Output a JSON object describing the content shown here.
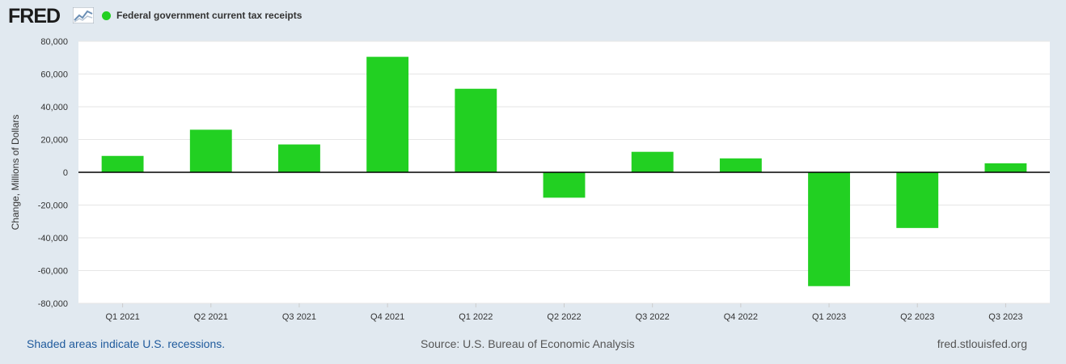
{
  "header": {
    "logo": "FRED",
    "legend_label": "Federal government current tax receipts",
    "legend_color": "#22d022"
  },
  "footer": {
    "recessions_note": "Shaded areas indicate U.S. recessions.",
    "source": "Source: U.S. Bureau of Economic Analysis",
    "site": "fred.stlouisfed.org"
  },
  "chart_data": {
    "type": "bar",
    "categories": [
      "Q1 2021",
      "Q2 2021",
      "Q3 2021",
      "Q4 2021",
      "Q1 2022",
      "Q2 2022",
      "Q3 2022",
      "Q4 2022",
      "Q1 2023",
      "Q2 2023",
      "Q3 2023"
    ],
    "series": [
      {
        "name": "Federal government current tax receipts",
        "color": "#22d022",
        "values": [
          10000,
          26000,
          17000,
          70500,
          51000,
          -15500,
          12500,
          8500,
          -69500,
          -34000,
          5500
        ]
      }
    ],
    "ylabel": "Change, Millions of Dollars",
    "ylim": [
      -80000,
      80000
    ],
    "yticks": [
      80000,
      60000,
      40000,
      20000,
      0,
      -20000,
      -40000,
      -60000,
      -80000
    ],
    "ytick_labels": [
      "80,000",
      "60,000",
      "40,000",
      "20,000",
      "0",
      "-20,000",
      "-40,000",
      "-60,000",
      "-80,000"
    ],
    "grid": true
  }
}
